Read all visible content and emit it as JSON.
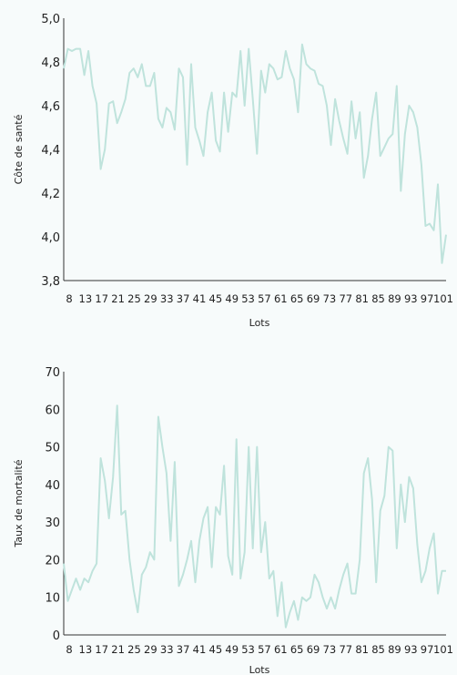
{
  "chart_data": [
    {
      "type": "line",
      "title": "",
      "xlabel": "Lots",
      "ylabel": "Côte de santé",
      "ylim": [
        3.8,
        5.0
      ],
      "yticks": [
        "3,8",
        "4,0",
        "4,2",
        "4,4",
        "4,6",
        "4,8",
        "5,0"
      ],
      "xticks": [
        "8",
        "13",
        "17",
        "21",
        "25",
        "29",
        "33",
        "37",
        "41",
        "45",
        "49",
        "53",
        "57",
        "61",
        "65",
        "69",
        "73",
        "77",
        "81",
        "85",
        "89",
        "93",
        "97",
        "101"
      ],
      "grid": false,
      "series": [
        {
          "color": "#bfe3dc",
          "values": [
            4.77,
            4.86,
            4.85,
            4.86,
            4.86,
            4.74,
            4.85,
            4.69,
            4.61,
            4.31,
            4.4,
            4.61,
            4.62,
            4.52,
            4.57,
            4.63,
            4.75,
            4.77,
            4.73,
            4.79,
            4.69,
            4.69,
            4.75,
            4.54,
            4.5,
            4.59,
            4.57,
            4.49,
            4.77,
            4.73,
            4.33,
            4.79,
            4.5,
            4.44,
            4.37,
            4.57,
            4.66,
            4.44,
            4.39,
            4.66,
            4.48,
            4.66,
            4.64,
            4.85,
            4.6,
            4.86,
            4.63,
            4.38,
            4.76,
            4.66,
            4.79,
            4.77,
            4.72,
            4.73,
            4.85,
            4.77,
            4.72,
            4.57,
            4.88,
            4.79,
            4.77,
            4.76,
            4.7,
            4.69,
            4.6,
            4.42,
            4.63,
            4.53,
            4.45,
            4.38,
            4.62,
            4.45,
            4.57,
            4.27,
            4.37,
            4.54,
            4.66,
            4.37,
            4.41,
            4.45,
            4.47,
            4.69,
            4.21,
            4.47,
            4.6,
            4.57,
            4.5,
            4.33,
            4.05,
            4.06,
            4.03,
            4.24,
            3.88,
            4.01
          ]
        }
      ]
    },
    {
      "type": "line",
      "title": "",
      "xlabel": "Lots",
      "ylabel": "Taux de mortalité",
      "ylim": [
        0,
        70
      ],
      "yticks": [
        "0",
        "10",
        "20",
        "30",
        "40",
        "50",
        "60",
        "70"
      ],
      "xticks": [
        "8",
        "13",
        "17",
        "21",
        "25",
        "29",
        "33",
        "37",
        "41",
        "45",
        "49",
        "53",
        "57",
        "61",
        "65",
        "69",
        "73",
        "77",
        "81",
        "85",
        "89",
        "93",
        "97",
        "101"
      ],
      "grid": false,
      "series": [
        {
          "color": "#bfe3dc",
          "values": [
            19,
            9,
            12,
            15,
            12,
            15,
            14,
            17,
            19,
            47,
            41,
            31,
            42,
            61,
            32,
            33,
            20,
            12,
            6,
            16,
            18,
            22,
            20,
            58,
            50,
            43,
            25,
            46,
            13,
            16,
            20,
            25,
            14,
            25,
            31,
            34,
            18,
            34,
            32,
            45,
            21,
            16,
            52,
            15,
            22,
            50,
            23,
            50,
            22,
            30,
            15,
            17,
            5,
            14,
            2,
            6,
            9,
            4,
            10,
            9,
            10,
            16,
            14,
            10,
            7,
            10,
            7,
            12,
            16,
            19,
            11,
            11,
            20,
            43,
            47,
            36,
            14,
            33,
            37,
            50,
            49,
            23,
            40,
            30,
            42,
            39,
            24,
            14,
            17,
            23,
            27,
            11,
            17,
            17
          ]
        }
      ]
    }
  ]
}
